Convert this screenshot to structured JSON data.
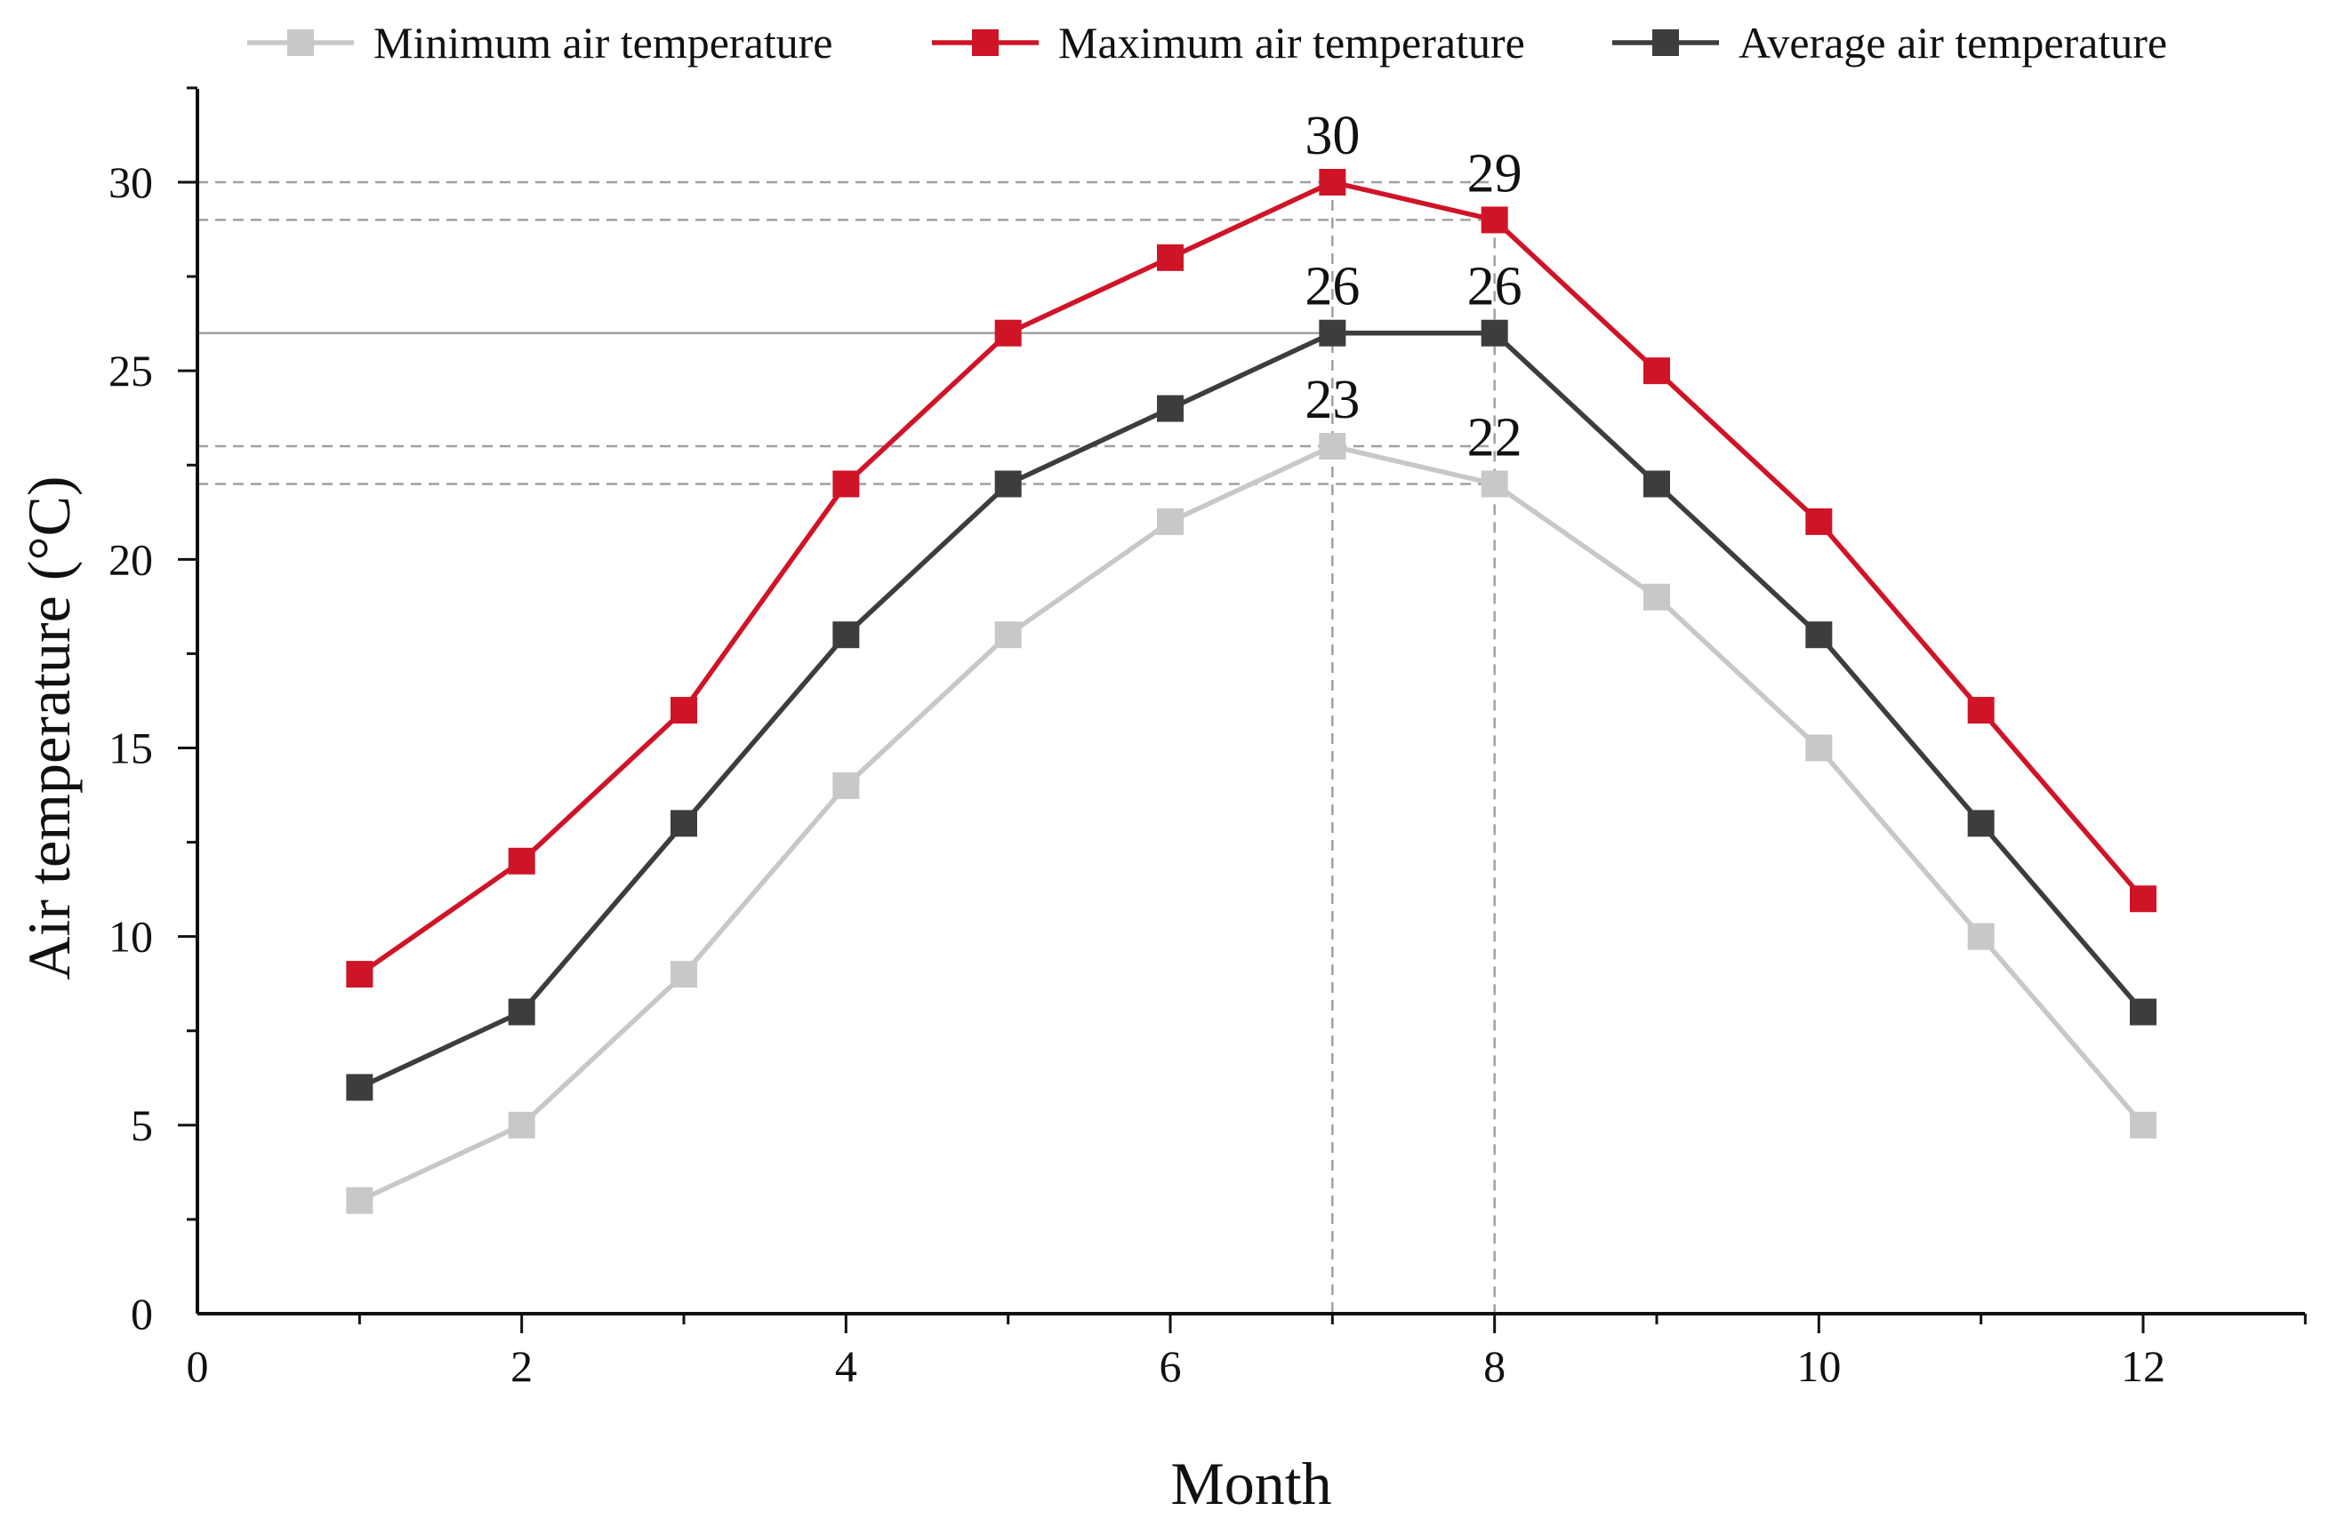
{
  "chart_data": {
    "type": "line",
    "title": "",
    "xlabel": "Month",
    "ylabel": "Air temperature (°C)",
    "xlim": [
      0,
      13
    ],
    "ylim": [
      0,
      32.5
    ],
    "x_ticks": [
      0,
      2,
      4,
      6,
      8,
      10,
      12
    ],
    "y_ticks": [
      0,
      5,
      10,
      15,
      20,
      25,
      30
    ],
    "grid": false,
    "legend_position": "top",
    "x": [
      1,
      2,
      3,
      4,
      5,
      6,
      7,
      8,
      9,
      10,
      11,
      12
    ],
    "series": [
      {
        "name": "Minimum air temperature",
        "color": "#c8c8c8",
        "marker": "square",
        "values": [
          3,
          5,
          9,
          14,
          18,
          21,
          23,
          22,
          19,
          15,
          10,
          5
        ]
      },
      {
        "name": "Maximum air temperature",
        "color": "#d01427",
        "marker": "square",
        "values": [
          9,
          12,
          16,
          22,
          26,
          28,
          30,
          29,
          25,
          21,
          16,
          11
        ]
      },
      {
        "name": "Average air temperature",
        "color": "#3d3d3d",
        "marker": "square",
        "values": [
          6,
          8,
          13,
          18,
          22,
          24,
          26,
          26,
          22,
          18,
          13,
          8
        ]
      }
    ],
    "annotations": [
      {
        "x": 7,
        "y": 30,
        "text": "30"
      },
      {
        "x": 8,
        "y": 29,
        "text": "29"
      },
      {
        "x": 7,
        "y": 26,
        "text": "26"
      },
      {
        "x": 8,
        "y": 26,
        "text": "26"
      },
      {
        "x": 7,
        "y": 23,
        "text": "23"
      },
      {
        "x": 8,
        "y": 22,
        "text": "22"
      }
    ],
    "reference_lines": {
      "horizontal": [
        30,
        29,
        26,
        23,
        22
      ],
      "vertical": [
        7,
        8
      ],
      "color": "#a0a0a0",
      "style": "dashed"
    }
  }
}
